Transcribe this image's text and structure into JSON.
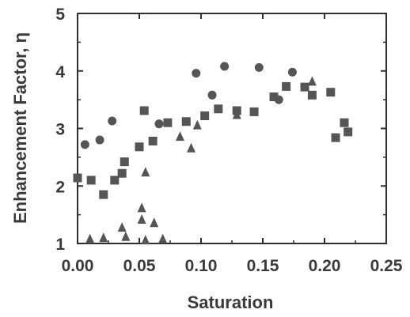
{
  "chart_data": {
    "type": "scatter",
    "title": "",
    "xlabel": "Saturation",
    "ylabel": "Enhancement Factor, η",
    "xlim": [
      0.0,
      0.25
    ],
    "ylim": [
      1,
      5
    ],
    "x_ticks": [
      0.0,
      0.05,
      0.1,
      0.15,
      0.2,
      0.25
    ],
    "x_tick_labels": [
      "0.00",
      "0.05",
      "0.10",
      "0.15",
      "0.20",
      "0.25"
    ],
    "y_ticks": [
      1,
      2,
      3,
      4,
      5
    ],
    "y_tick_labels": [
      "1",
      "2",
      "3",
      "4",
      "5"
    ],
    "grid": false,
    "legend": "none",
    "colors": {
      "axis": "#2f2f2f",
      "marker": "#555555",
      "text": "#3a3a3a"
    },
    "series": [
      {
        "marker": "circle",
        "points": [
          [
            0.006,
            2.72
          ],
          [
            0.018,
            2.8
          ],
          [
            0.028,
            3.13
          ],
          [
            0.066,
            3.08
          ],
          [
            0.096,
            3.96
          ],
          [
            0.109,
            3.58
          ],
          [
            0.119,
            4.08
          ],
          [
            0.147,
            4.06
          ],
          [
            0.163,
            3.5
          ],
          [
            0.174,
            3.98
          ]
        ]
      },
      {
        "marker": "square",
        "points": [
          [
            0.0,
            2.14
          ],
          [
            0.011,
            2.1
          ],
          [
            0.021,
            1.85
          ],
          [
            0.03,
            2.1
          ],
          [
            0.036,
            2.22
          ],
          [
            0.038,
            2.42
          ],
          [
            0.05,
            2.68
          ],
          [
            0.054,
            3.31
          ],
          [
            0.061,
            2.78
          ],
          [
            0.073,
            3.1
          ],
          [
            0.088,
            3.12
          ],
          [
            0.103,
            3.22
          ],
          [
            0.114,
            3.34
          ],
          [
            0.129,
            3.31
          ],
          [
            0.143,
            3.29
          ],
          [
            0.159,
            3.55
          ],
          [
            0.169,
            3.73
          ],
          [
            0.184,
            3.72
          ],
          [
            0.19,
            3.58
          ],
          [
            0.205,
            3.63
          ],
          [
            0.209,
            2.84
          ],
          [
            0.216,
            3.1
          ],
          [
            0.219,
            2.94
          ]
        ]
      },
      {
        "marker": "triangle",
        "points": [
          [
            0.01,
            1.08
          ],
          [
            0.021,
            1.1
          ],
          [
            0.036,
            1.28
          ],
          [
            0.039,
            1.12
          ],
          [
            0.052,
            1.62
          ],
          [
            0.052,
            1.42
          ],
          [
            0.055,
            2.24
          ],
          [
            0.055,
            1.06
          ],
          [
            0.062,
            1.36
          ],
          [
            0.069,
            1.08
          ],
          [
            0.083,
            2.86
          ],
          [
            0.092,
            2.66
          ],
          [
            0.097,
            3.06
          ],
          [
            0.129,
            3.24
          ],
          [
            0.19,
            3.82
          ]
        ]
      }
    ]
  }
}
